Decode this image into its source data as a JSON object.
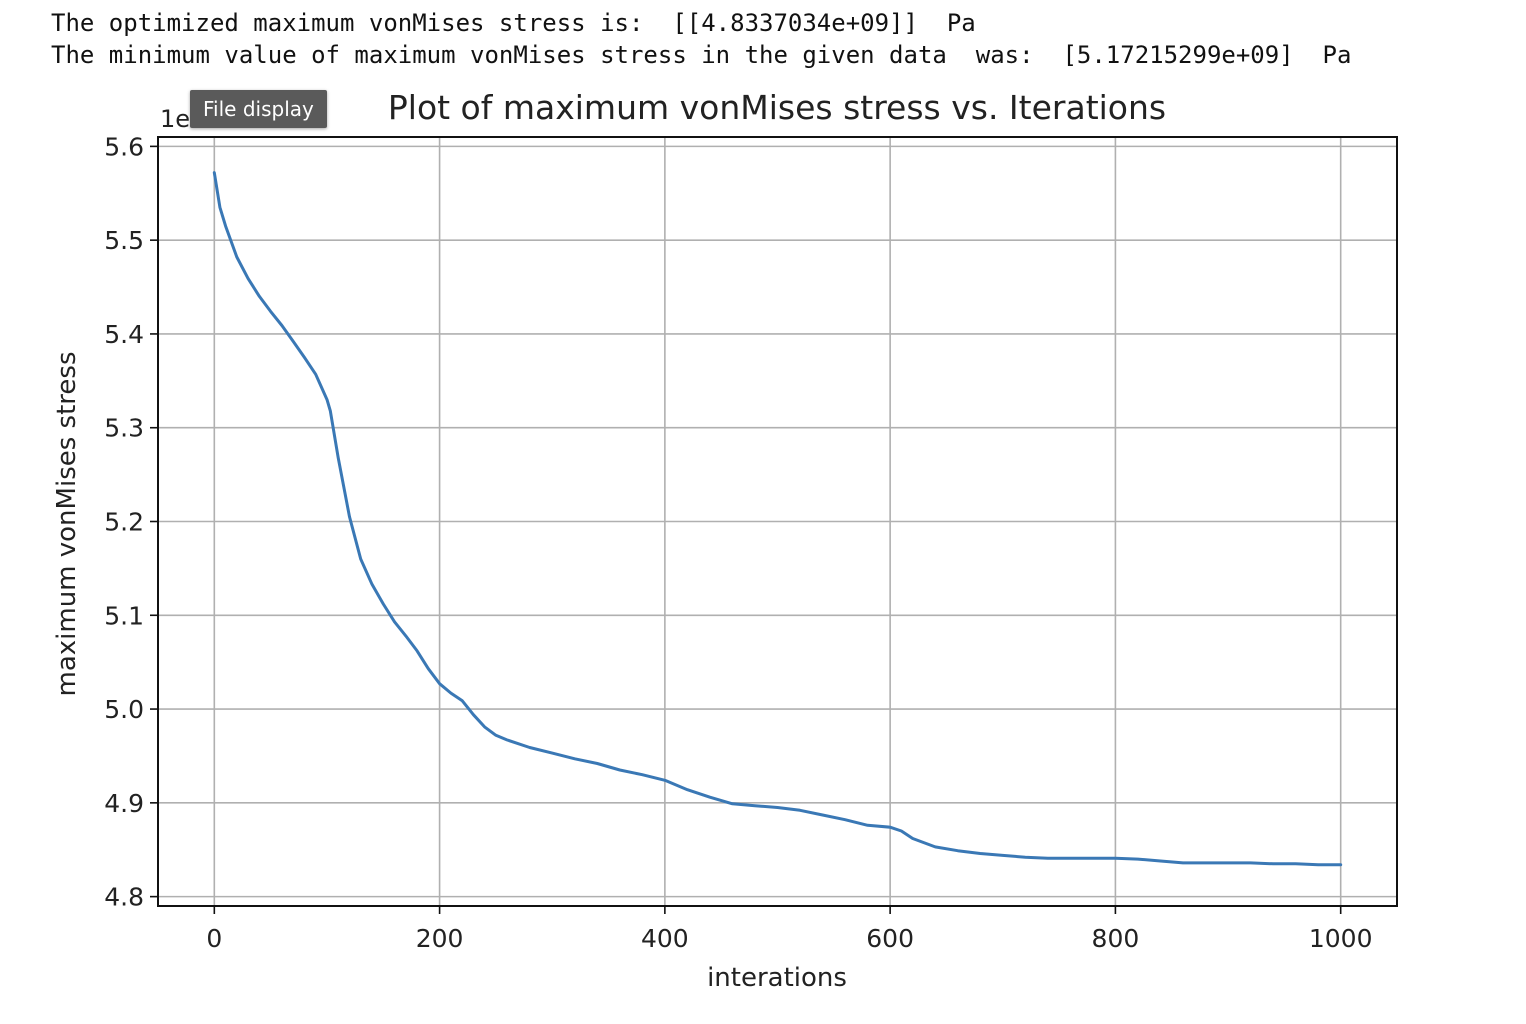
{
  "output": {
    "optimized_line": "The optimized maximum vonMises stress is:  [[4.8337034e+09]]  Pa",
    "minimum_line": "The minimum value of maximum vonMises stress in the given data  was:  [5.17215299e+09]  Pa"
  },
  "tooltip": {
    "label": "File display"
  },
  "chart_data": {
    "type": "line",
    "title": "Plot of maximum vonMises stress vs. Iterations",
    "xlabel": "interations",
    "ylabel": "maximum vonMises stress",
    "offset_text": "1e9",
    "xlim": [
      -50,
      1050
    ],
    "ylim": [
      4.79,
      5.61
    ],
    "xticks": [
      0,
      200,
      400,
      600,
      800,
      1000
    ],
    "xtick_labels": [
      "0",
      "200",
      "400",
      "600",
      "800",
      "1000"
    ],
    "yticks": [
      4.8,
      4.9,
      5.0,
      5.1,
      5.2,
      5.3,
      5.4,
      5.5,
      5.6
    ],
    "ytick_labels": [
      "4.8",
      "4.9",
      "5.0",
      "5.1",
      "5.2",
      "5.3",
      "5.4",
      "5.5",
      "5.6"
    ],
    "grid": true,
    "series_color": "#3a78b5",
    "series": [
      {
        "x": [
          0,
          5,
          10,
          20,
          30,
          40,
          50,
          60,
          70,
          80,
          90,
          100,
          103,
          110,
          120,
          130,
          140,
          150,
          160,
          170,
          180,
          190,
          200,
          210,
          220,
          230,
          240,
          250,
          260,
          280,
          300,
          320,
          340,
          360,
          380,
          400,
          420,
          440,
          460,
          480,
          500,
          520,
          540,
          560,
          580,
          600,
          610,
          620,
          640,
          660,
          680,
          700,
          720,
          740,
          760,
          780,
          800,
          820,
          840,
          860,
          880,
          900,
          920,
          940,
          960,
          980,
          1000
        ],
        "y": [
          5.572,
          5.535,
          5.515,
          5.482,
          5.459,
          5.44,
          5.424,
          5.409,
          5.392,
          5.375,
          5.357,
          5.33,
          5.318,
          5.268,
          5.205,
          5.16,
          5.133,
          5.112,
          5.093,
          5.078,
          5.062,
          5.043,
          5.027,
          5.017,
          5.009,
          4.994,
          4.981,
          4.972,
          4.967,
          4.959,
          4.953,
          4.947,
          4.942,
          4.935,
          4.93,
          4.924,
          4.914,
          4.906,
          4.899,
          4.897,
          4.895,
          4.892,
          4.887,
          4.882,
          4.876,
          4.874,
          4.87,
          4.862,
          4.853,
          4.849,
          4.846,
          4.844,
          4.842,
          4.841,
          4.841,
          4.841,
          4.841,
          4.84,
          4.838,
          4.836,
          4.836,
          4.836,
          4.836,
          4.835,
          4.835,
          4.834,
          4.834
        ]
      }
    ]
  }
}
